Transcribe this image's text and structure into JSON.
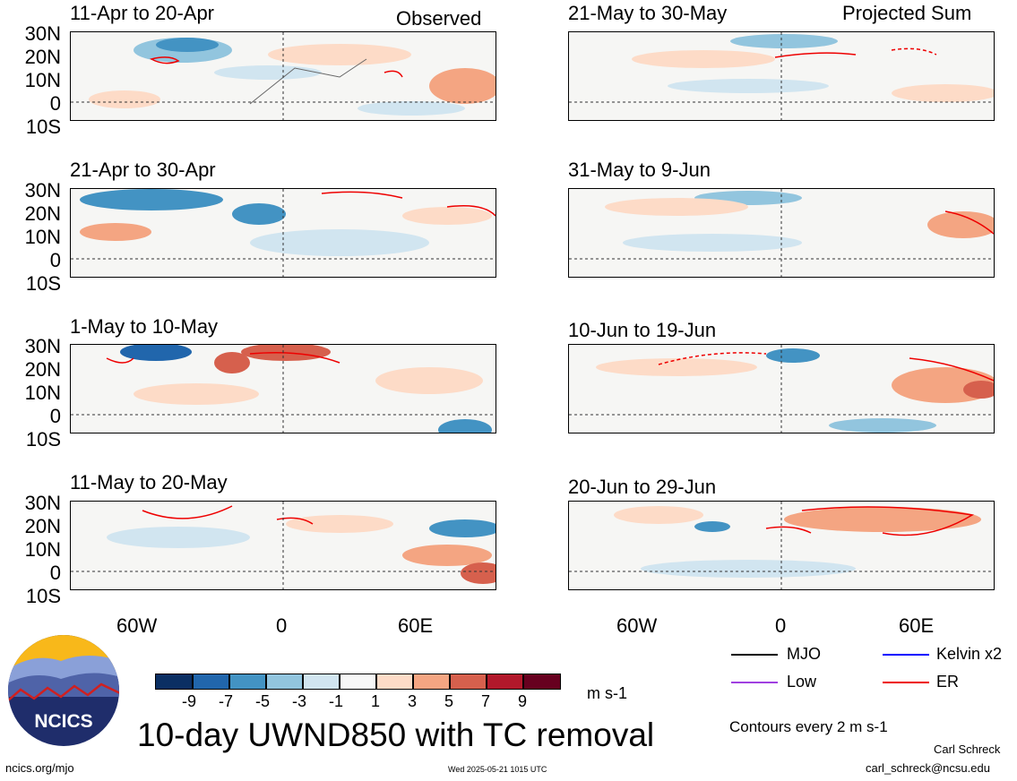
{
  "panels": {
    "observed": [
      {
        "title": "11-Apr to 20-Apr"
      },
      {
        "title": "21-Apr to 30-Apr"
      },
      {
        "title": "1-May to 10-May"
      },
      {
        "title": "11-May to 20-May"
      }
    ],
    "projected": [
      {
        "title": "21-May to 30-May"
      },
      {
        "title": "31-May to 9-Jun"
      },
      {
        "title": "10-Jun to 19-Jun"
      },
      {
        "title": "20-Jun to 29-Jun"
      }
    ]
  },
  "corner_labels": {
    "observed": "Observed",
    "projected": "Projected Sum"
  },
  "lat_ticks": [
    "30N",
    "20N",
    "10N",
    "0",
    "10S"
  ],
  "lon_ticks": [
    "60W",
    "0",
    "60E"
  ],
  "colorbar": {
    "ticks": [
      "-9",
      "-7",
      "-5",
      "-3",
      "-1",
      "1",
      "3",
      "5",
      "7",
      "9"
    ],
    "colors": [
      "#0b2f63",
      "#2166ac",
      "#4393c3",
      "#92c5de",
      "#d1e5f0",
      "#f7f7f7",
      "#fddbc7",
      "#f4a582",
      "#d6604d",
      "#b2182b",
      "#67001f"
    ],
    "unit": "m s-1"
  },
  "legend": [
    {
      "label": "MJO",
      "color": "#000000"
    },
    {
      "label": "Kelvin x2",
      "color": "#0000ff"
    },
    {
      "label": "Low",
      "color": "#a040e0"
    },
    {
      "label": "ER",
      "color": "#ee0000"
    }
  ],
  "contour_note": "Contours every 2 m s-1",
  "main_title": "10-day UWND850 with TC removal",
  "logo_text": "NCICS",
  "footer": {
    "url": "ncics.org/mjo",
    "timestamp": "Wed 2025-05-21 1015 UTC",
    "author": "Carl Schreck",
    "email": "carl_schreck@ncsu.edu"
  }
}
